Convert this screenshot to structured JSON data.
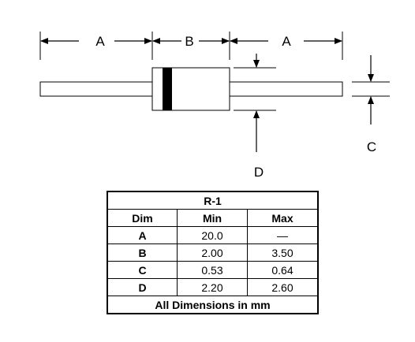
{
  "diagram": {
    "labels": {
      "lead_a_left": "A",
      "body_b": "B",
      "lead_a_right": "A",
      "lead_diameter_d": "D",
      "body_diameter_c": "C"
    }
  },
  "table": {
    "package": "R-1",
    "headers": [
      "Dim",
      "Min",
      "Max"
    ],
    "rows": [
      {
        "dim": "A",
        "min": "20.0",
        "max": "—"
      },
      {
        "dim": "B",
        "min": "2.00",
        "max": "3.50"
      },
      {
        "dim": "C",
        "min": "0.53",
        "max": "0.64"
      },
      {
        "dim": "D",
        "min": "2.20",
        "max": "2.60"
      }
    ],
    "footer": "All Dimensions in mm"
  }
}
